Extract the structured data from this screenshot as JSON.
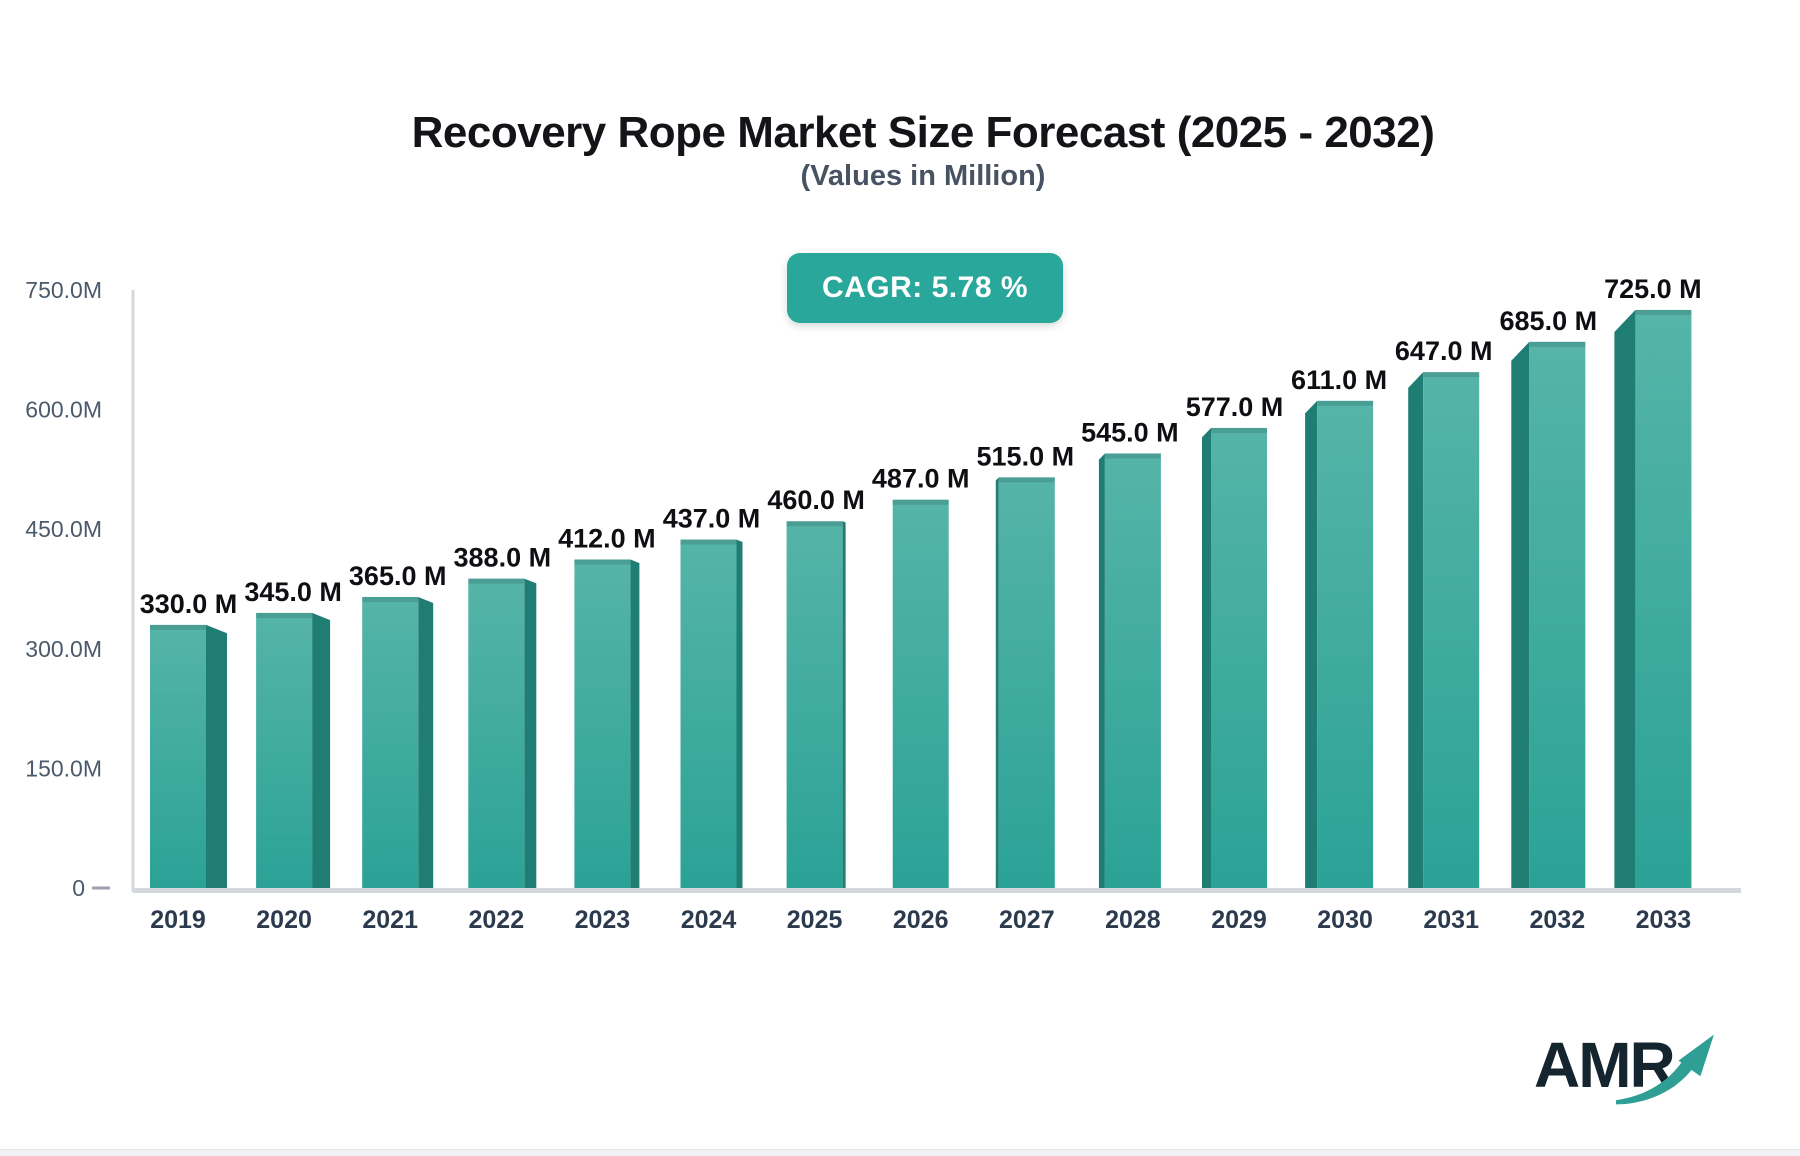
{
  "header": {
    "title": "Recovery Rope Market Size Forecast (2025 - 2032)",
    "subtitle": "(Values in Million)",
    "cagr_label": "CAGR: 5.78 %"
  },
  "chart_data": {
    "type": "bar",
    "title": "Recovery Rope Market Size Forecast (2025 - 2032)",
    "subtitle": "(Values in Million)",
    "categories": [
      "2019",
      "2020",
      "2021",
      "2022",
      "2023",
      "2024",
      "2025",
      "2026",
      "2027",
      "2028",
      "2029",
      "2030",
      "2031",
      "2032",
      "2033"
    ],
    "values": [
      330,
      345,
      365,
      388,
      412,
      437,
      460,
      487,
      515,
      545,
      577,
      611,
      647,
      685,
      725
    ],
    "value_labels": [
      "330.0 M",
      "345.0 M",
      "365.0 M",
      "388.0 M",
      "412.0 M",
      "437.0 M",
      "460.0 M",
      "487.0 M",
      "515.0 M",
      "545.0 M",
      "577.0 M",
      "611.0 M",
      "647.0 M",
      "685.0 M",
      "725.0 M"
    ],
    "xlabel": "",
    "ylabel": "",
    "ylim": [
      0,
      750
    ],
    "yticks": [
      0,
      150,
      300,
      450,
      600,
      750
    ],
    "ytick_labels": [
      "0",
      "150.0M",
      "300.0M",
      "450.0M",
      "600.0M",
      "750.0M"
    ],
    "grid": false,
    "legend": false,
    "cagr_percent": 5.78,
    "bar_style": "3d"
  },
  "logo": {
    "text": "AMR",
    "arrow_icon": "trend-up-arrow"
  },
  "colors": {
    "bar_top": "#56b4a8",
    "bar_bottom": "#2ba296",
    "bar_side": "#1f7d73",
    "bar_top_strip": "rgba(0,0,0,0.12)",
    "axis_line": "#d5d8dd",
    "zero_tick": "#9aa0ad",
    "ytick_text": "#4b5a6b",
    "xtick_text": "#2c3a4e",
    "value_text": "#0d0f12",
    "badge_bg": "#2aa79b",
    "badge_text": "#ffffff",
    "title_text": "#121418",
    "subtitle_text": "#475263",
    "logo_text": "#152530",
    "logo_arrow": "#2f9e94"
  }
}
